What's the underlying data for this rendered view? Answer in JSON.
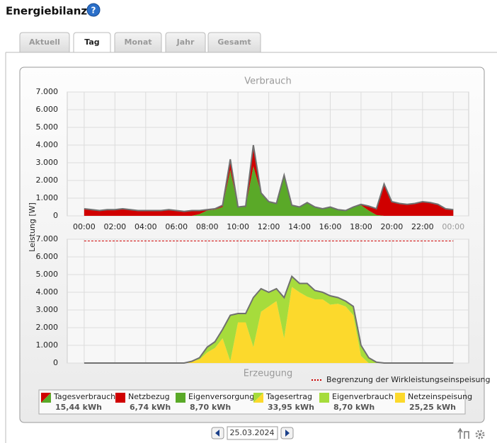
{
  "header": {
    "title": "Energiebilanz"
  },
  "tabs": [
    "Aktuell",
    "Tag",
    "Monat",
    "Jahr",
    "Gesamt"
  ],
  "active_tab": 1,
  "date": "25.03.2024",
  "chart_data": [
    {
      "type": "area",
      "stacked": true,
      "title": "Verbrauch",
      "ylabel": "Leistung [W]",
      "total": {
        "name": "Tagesverbrauch",
        "value": "15,44 kWh"
      },
      "x": [
        0,
        0.5,
        1,
        1.5,
        2,
        2.5,
        3,
        3.5,
        4,
        4.5,
        5,
        5.5,
        6,
        6.5,
        7,
        7.5,
        8,
        8.5,
        9,
        9.5,
        10,
        10.5,
        11,
        11.5,
        12,
        12.5,
        13,
        13.5,
        14,
        14.5,
        15,
        15.5,
        16,
        16.5,
        17,
        17.5,
        18,
        18.5,
        19,
        19.5,
        20,
        20.5,
        21,
        21.5,
        22,
        22.5,
        23,
        23.5,
        24
      ],
      "xlim": [
        -1.1,
        25
      ],
      "xticks": [
        {
          "value": 0,
          "label": "00:00"
        },
        {
          "value": 2,
          "label": "02:00"
        },
        {
          "value": 4,
          "label": "04:00"
        },
        {
          "value": 6,
          "label": "06:00"
        },
        {
          "value": 8,
          "label": "08:00"
        },
        {
          "value": 10,
          "label": "10:00"
        },
        {
          "value": 12,
          "label": "12:00"
        },
        {
          "value": 14,
          "label": "14:00"
        },
        {
          "value": 16,
          "label": "16:00"
        },
        {
          "value": 18,
          "label": "18:00"
        },
        {
          "value": 20,
          "label": "20:00"
        },
        {
          "value": 22,
          "label": "22:00"
        },
        {
          "value": 24,
          "label": "00:00"
        }
      ],
      "ylim": [
        0,
        7000
      ],
      "yticks": [
        0,
        {
          "value": 1000,
          "label": "1.000"
        },
        {
          "value": 2000,
          "label": "2.000"
        },
        {
          "value": 3000,
          "label": "3.000"
        },
        {
          "value": 4000,
          "label": "4.000"
        },
        {
          "value": 5000,
          "label": "5.000"
        },
        {
          "value": 6000,
          "label": "6.000"
        },
        {
          "value": 7000,
          "label": "7.000"
        }
      ],
      "grid": true,
      "outline_color": "#707070",
      "series": [
        {
          "name": "Eigenversorgung",
          "color": "#5aa928",
          "total": "8,70 kWh",
          "values": [
            0,
            0,
            0,
            0,
            0,
            0,
            0,
            0,
            0,
            0,
            0,
            0,
            0,
            0,
            0,
            100,
            300,
            350,
            500,
            2600,
            500,
            500,
            2800,
            1300,
            800,
            700,
            2300,
            600,
            500,
            750,
            500,
            400,
            500,
            350,
            300,
            500,
            600,
            300,
            50,
            0,
            0,
            0,
            0,
            0,
            0,
            0,
            0,
            0,
            0
          ]
        },
        {
          "name": "Netzbezug",
          "color": "#d00000",
          "total": "6,74 kWh",
          "values": [
            400,
            350,
            300,
            350,
            350,
            400,
            350,
            300,
            300,
            300,
            300,
            350,
            300,
            250,
            300,
            200,
            50,
            50,
            100,
            600,
            0,
            50,
            1200,
            0,
            0,
            0,
            0,
            0,
            0,
            0,
            0,
            0,
            0,
            0,
            0,
            0,
            50,
            250,
            350,
            1800,
            800,
            700,
            650,
            700,
            800,
            750,
            650,
            400,
            350
          ]
        }
      ]
    },
    {
      "type": "area",
      "stacked": true,
      "title": "Erzeugung",
      "total": {
        "name": "Tagesertrag",
        "value": "33,95 kWh"
      },
      "x": [
        0,
        0.5,
        1,
        1.5,
        2,
        2.5,
        3,
        3.5,
        4,
        4.5,
        5,
        5.5,
        6,
        6.5,
        7,
        7.5,
        8,
        8.5,
        9,
        9.5,
        10,
        10.5,
        11,
        11.5,
        12,
        12.5,
        13,
        13.5,
        14,
        14.5,
        15,
        15.5,
        16,
        16.5,
        17,
        17.5,
        18,
        18.5,
        19,
        19.5,
        20,
        20.5,
        21,
        21.5,
        22,
        22.5,
        23,
        23.5,
        24
      ],
      "xlim": [
        -1.1,
        25
      ],
      "ylim": [
        0,
        7000
      ],
      "yticks": [
        0,
        {
          "value": 1000,
          "label": "1.000"
        },
        {
          "value": 2000,
          "label": "2.000"
        },
        {
          "value": 3000,
          "label": "3.000"
        },
        {
          "value": 4000,
          "label": "4.000"
        },
        {
          "value": 5000,
          "label": "5.000"
        },
        {
          "value": 6000,
          "label": "6.000"
        },
        {
          "value": 7000,
          "label": "7.000"
        }
      ],
      "grid": true,
      "outline_color": "#707070",
      "limit": {
        "value": 6900,
        "label": "Begrenzung der Wirkleistungseinspeisung",
        "color": "#cc0000"
      },
      "series": [
        {
          "name": "Netzeinspeisung",
          "color": "#fcd92c",
          "total": "25,25 kWh",
          "values": [
            0,
            0,
            0,
            0,
            0,
            0,
            0,
            0,
            0,
            0,
            0,
            0,
            0,
            0,
            100,
            200,
            600,
            850,
            1400,
            100,
            2300,
            2300,
            900,
            2900,
            3200,
            3500,
            1400,
            4300,
            4000,
            3750,
            3600,
            3600,
            3300,
            3350,
            3200,
            2700,
            400,
            0,
            0,
            0,
            0,
            0,
            0,
            0,
            0,
            0,
            0,
            0,
            0
          ]
        },
        {
          "name": "Eigenverbrauch",
          "color": "#a6dc3c",
          "total": "8,70 kWh",
          "values": [
            0,
            0,
            0,
            0,
            0,
            0,
            0,
            0,
            0,
            0,
            0,
            0,
            0,
            0,
            0,
            100,
            300,
            350,
            500,
            2600,
            500,
            500,
            2800,
            1300,
            800,
            700,
            2300,
            600,
            500,
            750,
            500,
            400,
            500,
            350,
            300,
            500,
            600,
            300,
            50,
            0,
            0,
            0,
            0,
            0,
            0,
            0,
            0,
            0,
            0
          ]
        }
      ]
    }
  ]
}
